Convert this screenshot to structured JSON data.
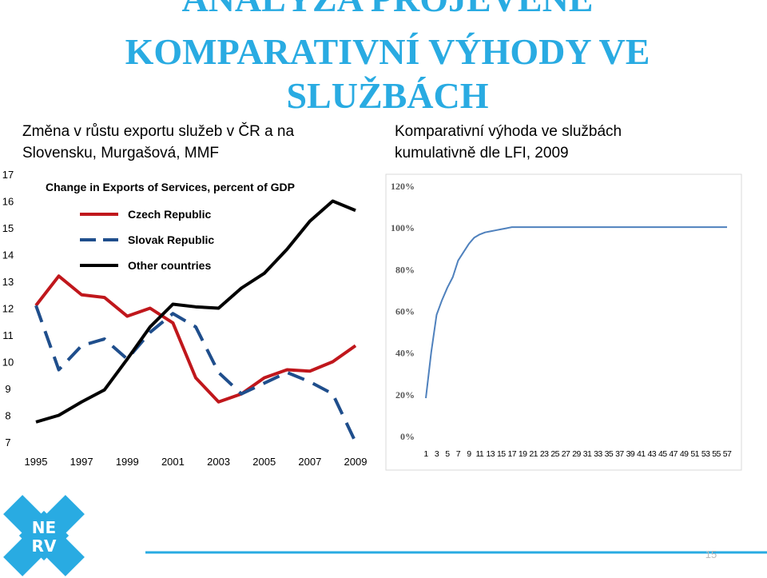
{
  "slide": {
    "title": [
      "ANALÝZA PROJEVENÉ",
      "KOMPARATIVNÍ VÝHODY VE",
      "SLUŽBÁCH"
    ],
    "logo": [
      "NE",
      "RV"
    ],
    "page_number": "15"
  },
  "chart_data": [
    {
      "type": "line",
      "heading": [
        "Změna v růstu exportu služeb v ČR a na",
        "Slovensku, Murgašová, MMF"
      ],
      "title": "Change in Exports of Services, percent of GDP",
      "x": [
        1995,
        1996,
        1997,
        1998,
        1999,
        2000,
        2001,
        2002,
        2003,
        2004,
        2005,
        2006,
        2007,
        2008,
        2009
      ],
      "xlim": [
        1995,
        2009
      ],
      "xticks": [
        1995,
        1997,
        1999,
        2001,
        2003,
        2005,
        2007,
        2009
      ],
      "ylim": [
        7,
        17
      ],
      "yticks": [
        7,
        8,
        9,
        10,
        11,
        12,
        13,
        14,
        15,
        16,
        17
      ],
      "legend": "upper left",
      "series": [
        {
          "name": "Czech Republic",
          "color": "#c0171c",
          "style": "solid",
          "values": [
            12.1,
            13.2,
            12.5,
            12.4,
            11.7,
            12.0,
            11.45,
            9.4,
            8.5,
            8.8,
            9.4,
            9.7,
            9.65,
            10.0,
            10.6
          ]
        },
        {
          "name": "Slovak Republic",
          "color": "#1f4e8c",
          "style": "dashed",
          "values": [
            12.1,
            9.7,
            10.6,
            10.85,
            10.1,
            11.1,
            11.8,
            11.3,
            9.6,
            8.8,
            9.2,
            9.6,
            9.25,
            8.8,
            7.0
          ]
        },
        {
          "name": "Other countries",
          "color": "#000000",
          "style": "solid",
          "values": [
            7.75,
            8.0,
            8.5,
            8.95,
            10.1,
            11.3,
            12.15,
            12.05,
            12.0,
            12.75,
            13.3,
            14.2,
            15.25,
            16.0,
            15.65
          ]
        }
      ]
    },
    {
      "type": "line",
      "heading": [
        "Komparativní výhoda ve službách",
        "kumulativně dle LFI, 2009"
      ],
      "x": [
        1,
        2,
        3,
        4,
        5,
        6,
        7,
        8,
        9,
        10,
        11,
        12,
        13,
        14,
        15,
        16,
        17,
        18,
        19,
        20,
        21,
        22,
        23,
        24,
        25,
        26,
        27,
        28,
        29,
        30,
        31,
        32,
        33,
        34,
        35,
        36,
        37,
        38,
        39,
        40,
        41,
        42,
        43,
        44,
        45,
        46,
        47,
        48,
        49,
        50,
        51,
        52,
        53,
        54,
        55,
        56,
        57
      ],
      "xlim": [
        1,
        57
      ],
      "xticks": [
        1,
        3,
        5,
        7,
        9,
        11,
        13,
        15,
        17,
        19,
        21,
        23,
        25,
        27,
        29,
        31,
        33,
        35,
        37,
        39,
        41,
        43,
        45,
        47,
        49,
        51,
        53,
        55,
        57
      ],
      "ylim": [
        0,
        120
      ],
      "yticks": [
        {
          "value": 0,
          "label": "0%"
        },
        {
          "value": 20,
          "label": "20%"
        },
        {
          "value": 40,
          "label": "40%"
        },
        {
          "value": 60,
          "label": "60%"
        },
        {
          "value": 80,
          "label": "80%"
        },
        {
          "value": 100,
          "label": "100%"
        },
        {
          "value": 120,
          "label": "120%"
        }
      ],
      "series": [
        {
          "color": "#4f81bd",
          "style": "solid",
          "values": [
            18,
            40,
            58,
            65,
            71,
            76,
            84,
            88,
            92,
            95,
            96.5,
            97.5,
            98,
            98.5,
            99,
            99.5,
            100,
            100,
            100,
            100,
            100,
            100,
            100,
            100,
            100,
            100,
            100,
            100,
            100,
            100,
            100,
            100,
            100,
            100,
            100,
            100,
            100,
            100,
            100,
            100,
            100,
            100,
            100,
            100,
            100,
            100,
            100,
            100,
            100,
            100,
            100,
            100,
            100,
            100,
            100,
            100,
            100
          ]
        }
      ]
    }
  ]
}
